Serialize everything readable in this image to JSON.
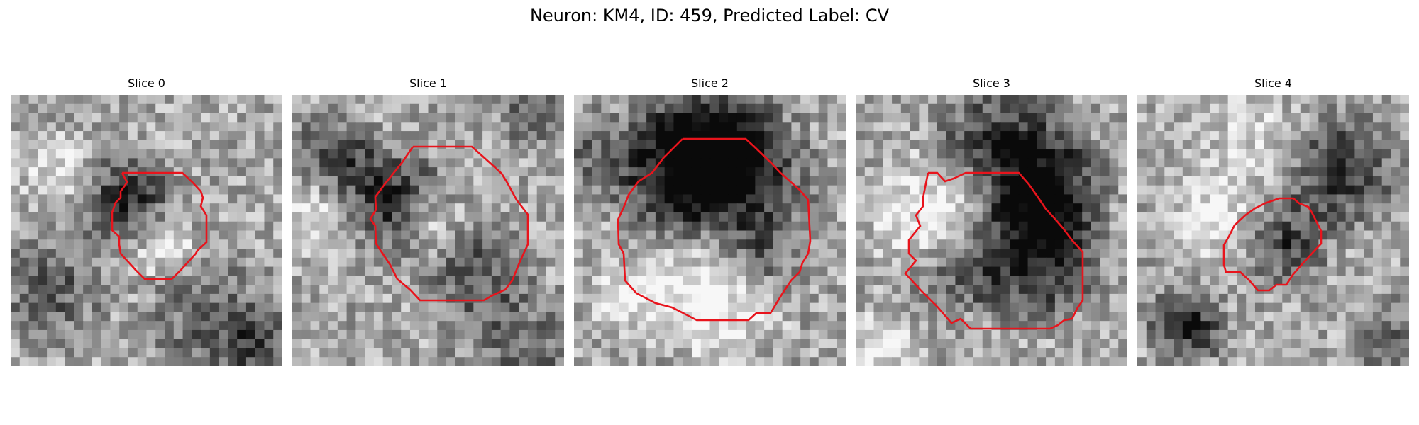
{
  "figure": {
    "title": "Neuron: KM4, ID: 459, Predicted Label: CV"
  },
  "panels": [
    {
      "title": "Slice 0",
      "contour_color": "#e8141c",
      "image": "grayscale-microscopy-patch"
    },
    {
      "title": "Slice 1",
      "contour_color": "#e8141c",
      "image": "grayscale-microscopy-patch"
    },
    {
      "title": "Slice 2",
      "contour_color": "#e8141c",
      "image": "grayscale-microscopy-patch"
    },
    {
      "title": "Slice 3",
      "contour_color": "#e8141c",
      "image": "grayscale-microscopy-patch"
    },
    {
      "title": "Slice 4",
      "contour_color": "#e8141c",
      "image": "grayscale-microscopy-patch"
    }
  ]
}
